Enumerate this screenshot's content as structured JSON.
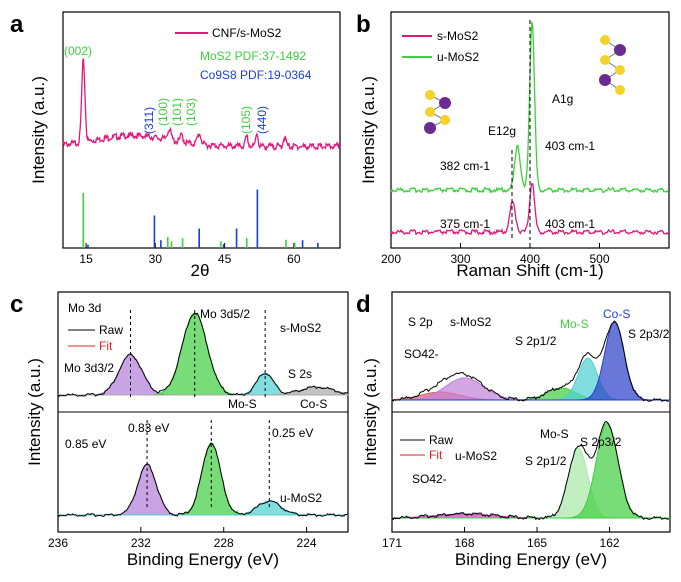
{
  "chart_data": [
    {
      "panel": "a",
      "type": "line",
      "xlabel": "2θ",
      "ylabel": "Intensity (a.u.)",
      "xlim": [
        10,
        70
      ],
      "xticks": [
        "15",
        "30",
        "45",
        "60"
      ],
      "legend": "CNF/s-MoS2",
      "legend_color": "#e0197d",
      "ref1": "MoS2 PDF:37-1492",
      "ref1_color": "#3ecf3e",
      "ref2": "Co9S8 PDF:19-0364",
      "ref2_color": "#1a3fd8",
      "series": [
        {
          "name": "CNF/s-MoS2",
          "peaks": [
            [
              14.4,
              "(002)"
            ],
            [
              33,
              "(100)"
            ],
            [
              35.7,
              "(101)"
            ],
            [
              39.6,
              "(103)"
            ],
            [
              49.8,
              "(105)"
            ],
            [
              31.2,
              "(311)"
            ],
            [
              52,
              "(440)"
            ]
          ]
        }
      ],
      "peak_labels": [
        "(002)",
        "(311)",
        "(100)",
        "(101)",
        "(103)",
        "(105)",
        "(440)"
      ],
      "mos2_sticks": [
        14.4,
        32.7,
        33.5,
        35.9,
        39.5,
        44.2,
        49.8,
        58.3,
        60.2
      ],
      "co9s8_sticks": [
        15.4,
        29.8,
        31.2,
        39.5,
        44.8,
        47.6,
        52.1,
        61.9,
        65.2
      ]
    },
    {
      "panel": "b",
      "type": "line",
      "xlabel": "Raman Shift (cm-1)",
      "ylabel": "Intensity (a.u.)",
      "xlim": [
        200,
        600
      ],
      "xticks": [
        "200",
        "300",
        "400",
        "500"
      ],
      "series": [
        {
          "name": "s-MoS2",
          "color": "#e0197d",
          "peaks": [
            375,
            403
          ]
        },
        {
          "name": "u-MoS2",
          "color": "#3ecf3e",
          "peaks": [
            382,
            403
          ]
        }
      ],
      "annotations": [
        "382 cm-1",
        "403 cm-1",
        "375 cm-1",
        "403 cm-1",
        "E12g",
        "A1g"
      ]
    },
    {
      "panel": "c",
      "type": "line",
      "xlabel": "Binding Energy (eV)",
      "ylabel": "Intensity (a.u.)",
      "xlim": [
        236,
        222
      ],
      "xticks": [
        "236",
        "232",
        "228",
        "224"
      ],
      "title": "Mo 3d",
      "legend": [
        "Raw",
        "Fit"
      ],
      "samples": [
        "s-MoS2",
        "u-MoS2"
      ],
      "labels": [
        "Mo 3d3/2",
        "Mo 3d5/2",
        "S 2s",
        "Mo-S",
        "Co-S"
      ],
      "shifts": [
        "0.85 eV",
        "0.83 eV",
        "0.25 eV"
      ],
      "s_peaks": [
        232.5,
        229.4,
        226.0,
        223.5
      ],
      "u_peaks": [
        231.7,
        228.6,
        225.8
      ]
    },
    {
      "panel": "d",
      "type": "line",
      "xlabel": "Binding Energy (eV)",
      "ylabel": "Intensity (a.u.)",
      "xlim": [
        171,
        159.5
      ],
      "xticks": [
        "171",
        "168",
        "165",
        "162"
      ],
      "legend": [
        "Raw",
        "Fit"
      ],
      "samples": [
        "s-MoS2",
        "u-MoS2"
      ],
      "labels": [
        "S 2p",
        "SO42-",
        "S 2p1/2",
        "Mo-S",
        "Co-S",
        "S 2p3/2"
      ],
      "s_peaks": [
        168.0,
        164.0,
        162.9,
        161.8
      ],
      "u_peaks": [
        163.3,
        162.1
      ]
    }
  ],
  "panels": {
    "a": "a",
    "b": "b",
    "c": "c",
    "d": "d"
  }
}
